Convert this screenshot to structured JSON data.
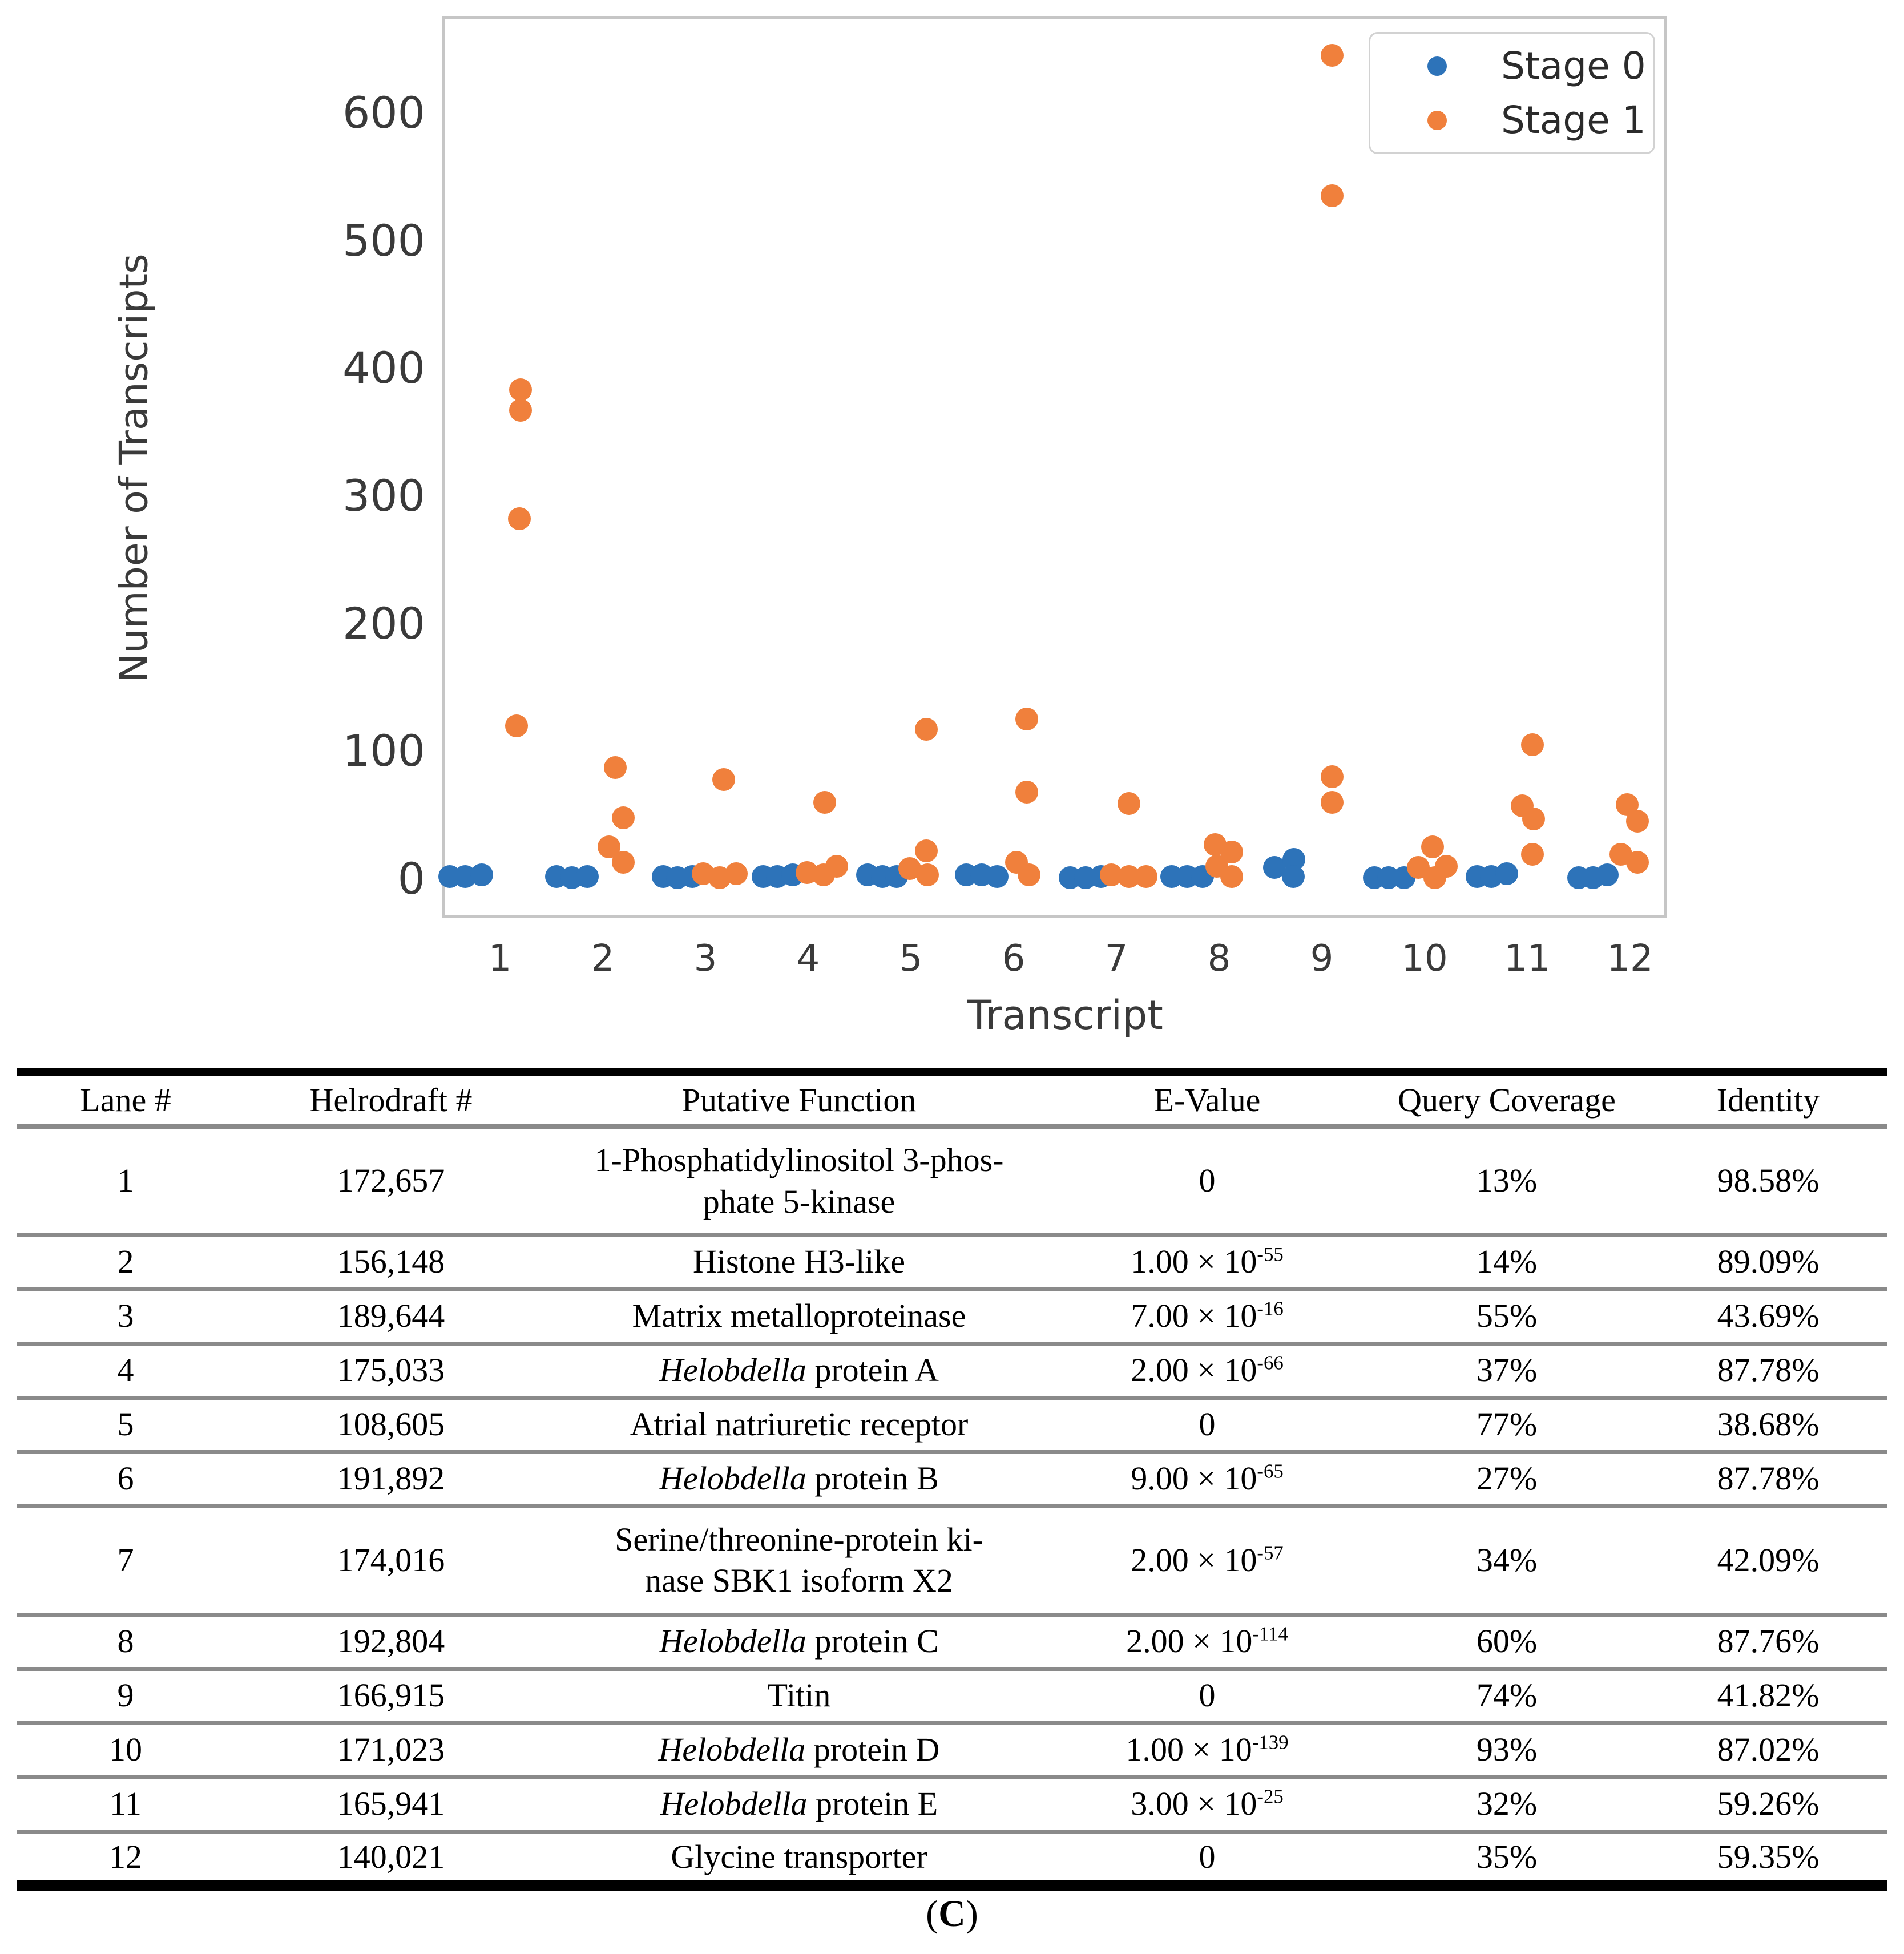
{
  "chart_data": {
    "type": "scatter",
    "title": "",
    "xlabel": "Transcript",
    "ylabel": "Number of Transcripts",
    "x_ticks": [
      "1",
      "2",
      "3",
      "4",
      "5",
      "6",
      "7",
      "8",
      "9",
      "10",
      "11",
      "12"
    ],
    "y_ticks": [
      "0",
      "100",
      "200",
      "300",
      "400",
      "500",
      "600"
    ],
    "ylim": [
      -30,
      675
    ],
    "grid": false,
    "legend": {
      "position": "upper right",
      "entries": [
        {
          "label": "Stage 0",
          "color": "#2d73b9"
        },
        {
          "label": "Stage 1",
          "color": "#f0803c"
        }
      ]
    },
    "series": [
      {
        "name": "Stage 0",
        "color": "#2d73b9",
        "points": [
          [
            1,
            -0.49,
            2
          ],
          [
            1,
            -0.34,
            2
          ],
          [
            1,
            -0.18,
            3
          ],
          [
            2,
            -0.45,
            2
          ],
          [
            2,
            -0.3,
            1
          ],
          [
            2,
            -0.15,
            2
          ],
          [
            3,
            -0.41,
            2
          ],
          [
            3,
            -0.27,
            1
          ],
          [
            3,
            -0.13,
            2
          ],
          [
            4,
            -0.44,
            2
          ],
          [
            4,
            -0.3,
            2
          ],
          [
            4,
            -0.15,
            3
          ],
          [
            5,
            -0.42,
            3
          ],
          [
            5,
            -0.28,
            2
          ],
          [
            5,
            -0.14,
            2
          ],
          [
            6,
            -0.46,
            3
          ],
          [
            6,
            -0.31,
            3
          ],
          [
            6,
            -0.16,
            2
          ],
          [
            7,
            -0.45,
            1
          ],
          [
            7,
            -0.3,
            1
          ],
          [
            7,
            -0.15,
            2
          ],
          [
            8,
            -0.46,
            2
          ],
          [
            8,
            -0.31,
            2
          ],
          [
            8,
            -0.16,
            2
          ],
          [
            9,
            -0.46,
            9
          ],
          [
            9,
            -0.27,
            15
          ],
          [
            9,
            -0.28,
            2
          ],
          [
            10,
            -0.49,
            1
          ],
          [
            10,
            -0.35,
            1
          ],
          [
            10,
            -0.2,
            1
          ],
          [
            11,
            -0.49,
            2
          ],
          [
            11,
            -0.35,
            2
          ],
          [
            11,
            -0.2,
            4
          ],
          [
            12,
            -0.5,
            1
          ],
          [
            12,
            -0.36,
            1
          ],
          [
            12,
            -0.22,
            3
          ]
        ]
      },
      {
        "name": "Stage 1",
        "color": "#f0803c",
        "points": [
          [
            1,
            0.2,
            383
          ],
          [
            1,
            0.2,
            367
          ],
          [
            1,
            0.19,
            282
          ],
          [
            1,
            0.16,
            120
          ],
          [
            2,
            0.12,
            87
          ],
          [
            2,
            0.2,
            48
          ],
          [
            2,
            0.06,
            25
          ],
          [
            2,
            0.2,
            13
          ],
          [
            3,
            0.18,
            78
          ],
          [
            3,
            -0.02,
            4
          ],
          [
            3,
            0.14,
            1
          ],
          [
            3,
            0.3,
            4
          ],
          [
            4,
            0.16,
            60
          ],
          [
            4,
            -0.01,
            5
          ],
          [
            4,
            0.15,
            3
          ],
          [
            4,
            0.28,
            10
          ],
          [
            5,
            0.15,
            117
          ],
          [
            5,
            0.15,
            22
          ],
          [
            5,
            -0.01,
            8
          ],
          [
            5,
            0.16,
            3
          ],
          [
            6,
            0.13,
            125
          ],
          [
            6,
            0.13,
            68
          ],
          [
            6,
            0.03,
            13
          ],
          [
            6,
            0.15,
            3
          ],
          [
            7,
            0.12,
            59
          ],
          [
            7,
            -0.05,
            3
          ],
          [
            7,
            0.12,
            2
          ],
          [
            7,
            0.29,
            2
          ],
          [
            8,
            -0.04,
            27
          ],
          [
            8,
            0.12,
            21
          ],
          [
            8,
            -0.02,
            10
          ],
          [
            8,
            0.12,
            2
          ],
          [
            9,
            0.1,
            645
          ],
          [
            9,
            0.1,
            535
          ],
          [
            9,
            0.1,
            80
          ],
          [
            9,
            0.1,
            60
          ],
          [
            10,
            0.08,
            25
          ],
          [
            10,
            0.21,
            10
          ],
          [
            10,
            -0.06,
            9
          ],
          [
            10,
            0.1,
            1
          ],
          [
            11,
            0.05,
            105
          ],
          [
            11,
            -0.05,
            57
          ],
          [
            11,
            0.06,
            47
          ],
          [
            11,
            0.05,
            19
          ],
          [
            12,
            -0.03,
            58
          ],
          [
            12,
            0.07,
            45
          ],
          [
            12,
            -0.09,
            19
          ],
          [
            12,
            0.07,
            13
          ]
        ]
      }
    ]
  },
  "table": {
    "headers": {
      "lane": "Lane #",
      "helrodraft": "Helrodraft #",
      "function": "Putative Function",
      "evalue": "E-Value",
      "coverage": "Query Coverage",
      "identity": "Identity"
    },
    "rows": [
      {
        "lane": "1",
        "helrodraft": "172,657",
        "func_italic": "",
        "func": [
          "1-Phosphatidylinositol 3-phos-",
          "phate 5-kinase"
        ],
        "evalue_base": "0",
        "evalue_exp": "",
        "coverage": "13%",
        "identity": "98.58%",
        "tall": true
      },
      {
        "lane": "2",
        "helrodraft": "156,148",
        "func_italic": "",
        "func": "Histone H3-like",
        "evalue_base": "1.00 × 10",
        "evalue_exp": "-55",
        "coverage": "14%",
        "identity": "89.09%"
      },
      {
        "lane": "3",
        "helrodraft": "189,644",
        "func_italic": "",
        "func": "Matrix metalloproteinase",
        "evalue_base": "7.00 × 10",
        "evalue_exp": "-16",
        "coverage": "55%",
        "identity": "43.69%"
      },
      {
        "lane": "4",
        "helrodraft": "175,033",
        "func_italic": "Helobdella",
        "func": " protein A",
        "evalue_base": "2.00 × 10",
        "evalue_exp": "-66",
        "coverage": "37%",
        "identity": "87.78%"
      },
      {
        "lane": "5",
        "helrodraft": "108,605",
        "func_italic": "",
        "func": "Atrial natriuretic receptor",
        "evalue_base": "0",
        "evalue_exp": "",
        "coverage": "77%",
        "identity": "38.68%"
      },
      {
        "lane": "6",
        "helrodraft": "191,892",
        "func_italic": "Helobdella",
        "func": " protein B",
        "evalue_base": "9.00 × 10",
        "evalue_exp": "-65",
        "coverage": "27%",
        "identity": "87.78%"
      },
      {
        "lane": "7",
        "helrodraft": "174,016",
        "func_italic": "",
        "func": [
          "Serine/threonine-protein ki-",
          "nase SBK1 isoform X2"
        ],
        "evalue_base": "2.00 × 10",
        "evalue_exp": "-57",
        "coverage": "34%",
        "identity": "42.09%",
        "tall": true
      },
      {
        "lane": "8",
        "helrodraft": "192,804",
        "func_italic": "Helobdella",
        "func": " protein C",
        "evalue_base": "2.00 × 10",
        "evalue_exp": "-114",
        "coverage": "60%",
        "identity": "87.76%"
      },
      {
        "lane": "9",
        "helrodraft": "166,915",
        "func_italic": "",
        "func": "Titin",
        "evalue_base": "0",
        "evalue_exp": "",
        "coverage": "74%",
        "identity": "41.82%"
      },
      {
        "lane": "10",
        "helrodraft": "171,023",
        "func_italic": "Helobdella",
        "func": " protein D",
        "evalue_base": "1.00 × 10",
        "evalue_exp": "-139",
        "coverage": "93%",
        "identity": "87.02%"
      },
      {
        "lane": "11",
        "helrodraft": "165,941",
        "func_italic": "Helobdella",
        "func": " protein E",
        "evalue_base": "3.00 × 10",
        "evalue_exp": "-25",
        "coverage": "32%",
        "identity": "59.26%"
      },
      {
        "lane": "12",
        "helrodraft": "140,021",
        "func_italic": "",
        "func": "Glycine transporter",
        "evalue_base": "0",
        "evalue_exp": "",
        "coverage": "35%",
        "identity": "59.35%"
      }
    ]
  },
  "caption": {
    "open": "(",
    "letter": "C",
    "close": ")"
  }
}
